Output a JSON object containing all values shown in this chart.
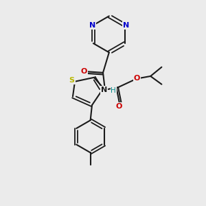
{
  "bg_color": "#ebebeb",
  "bond_color": "#1a1a1a",
  "S_color": "#b8b800",
  "N_color": "#0000cc",
  "O_color": "#cc0000",
  "H_color": "#008888",
  "figsize": [
    3.0,
    3.0
  ],
  "dpi": 100,
  "xlim": [
    0,
    10
  ],
  "ylim": [
    0,
    10
  ]
}
